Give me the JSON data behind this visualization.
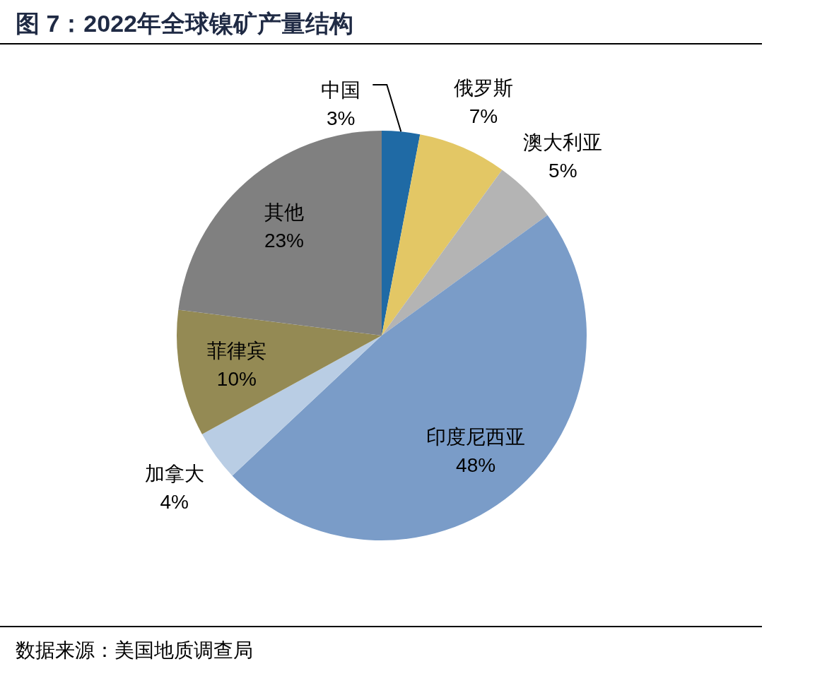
{
  "chart_data": {
    "type": "pie",
    "title": "图 7：2022年全球镍矿产量结构",
    "categories": [
      "中国",
      "俄罗斯",
      "澳大利亚",
      "印度尼西亚",
      "加拿大",
      "菲律宾",
      "其他"
    ],
    "values": [
      3,
      7,
      5,
      48,
      4,
      10,
      23
    ],
    "colors": [
      "#1f6aa5",
      "#e3c765",
      "#b4b4b4",
      "#7a9cc8",
      "#b9cde4",
      "#948a54",
      "#808080"
    ],
    "value_labels": [
      "3%",
      "7%",
      "5%",
      "48%",
      "4%",
      "10%",
      "23%"
    ],
    "annotations": [
      "数据来源：美国地质调查局"
    ]
  }
}
